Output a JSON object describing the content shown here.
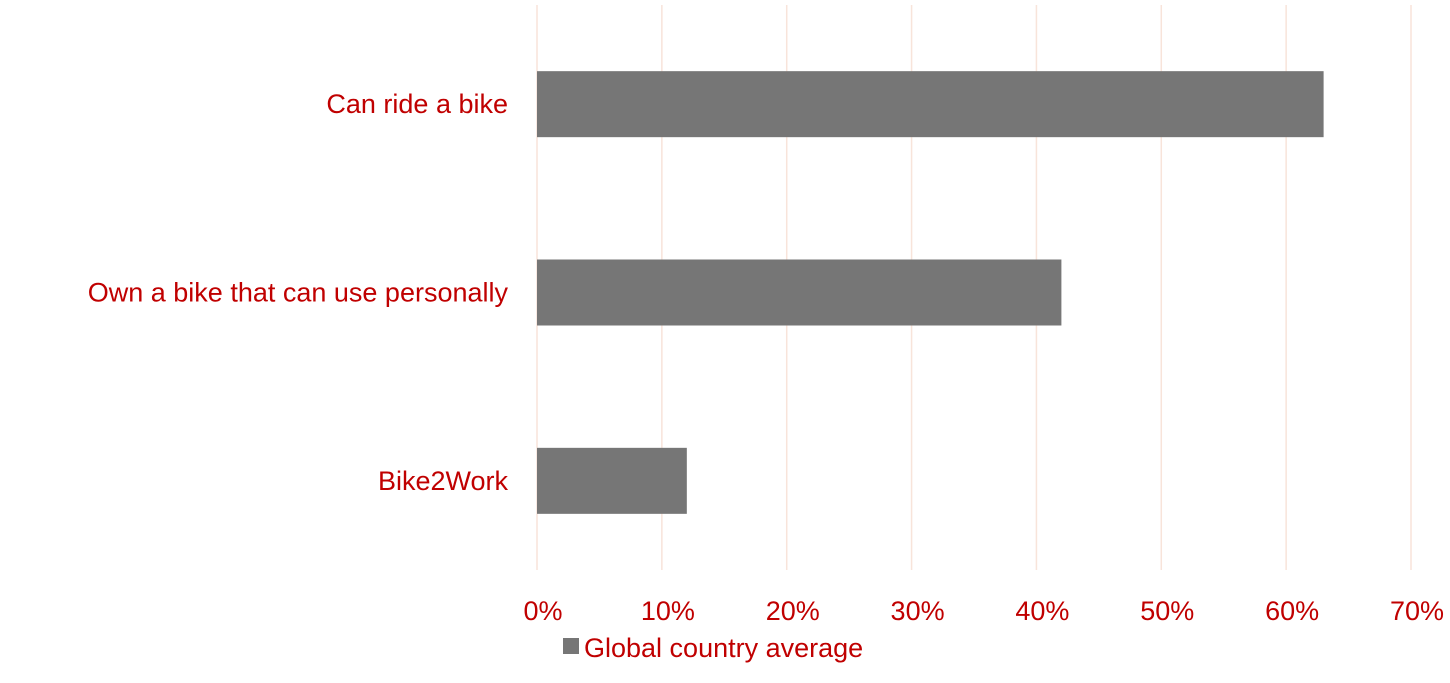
{
  "chart_data": {
    "type": "bar",
    "orientation": "horizontal",
    "categories": [
      "Can ride a bike",
      "Own a bike that can use personally",
      "Bike2Work"
    ],
    "series": [
      {
        "name": "Global country average",
        "values": [
          0.63,
          0.42,
          0.12
        ],
        "color": "#767676"
      }
    ],
    "xlim": [
      0,
      0.7
    ],
    "xticks": [
      "0%",
      "10%",
      "20%",
      "30%",
      "40%",
      "50%",
      "60%",
      "70%"
    ],
    "title": "",
    "xlabel": "",
    "ylabel": "",
    "grid": "vertical",
    "legend_position": "bottom",
    "colors": {
      "label_text": "#c00000",
      "gridline": "#f8e4da",
      "bar": "#767676"
    }
  }
}
